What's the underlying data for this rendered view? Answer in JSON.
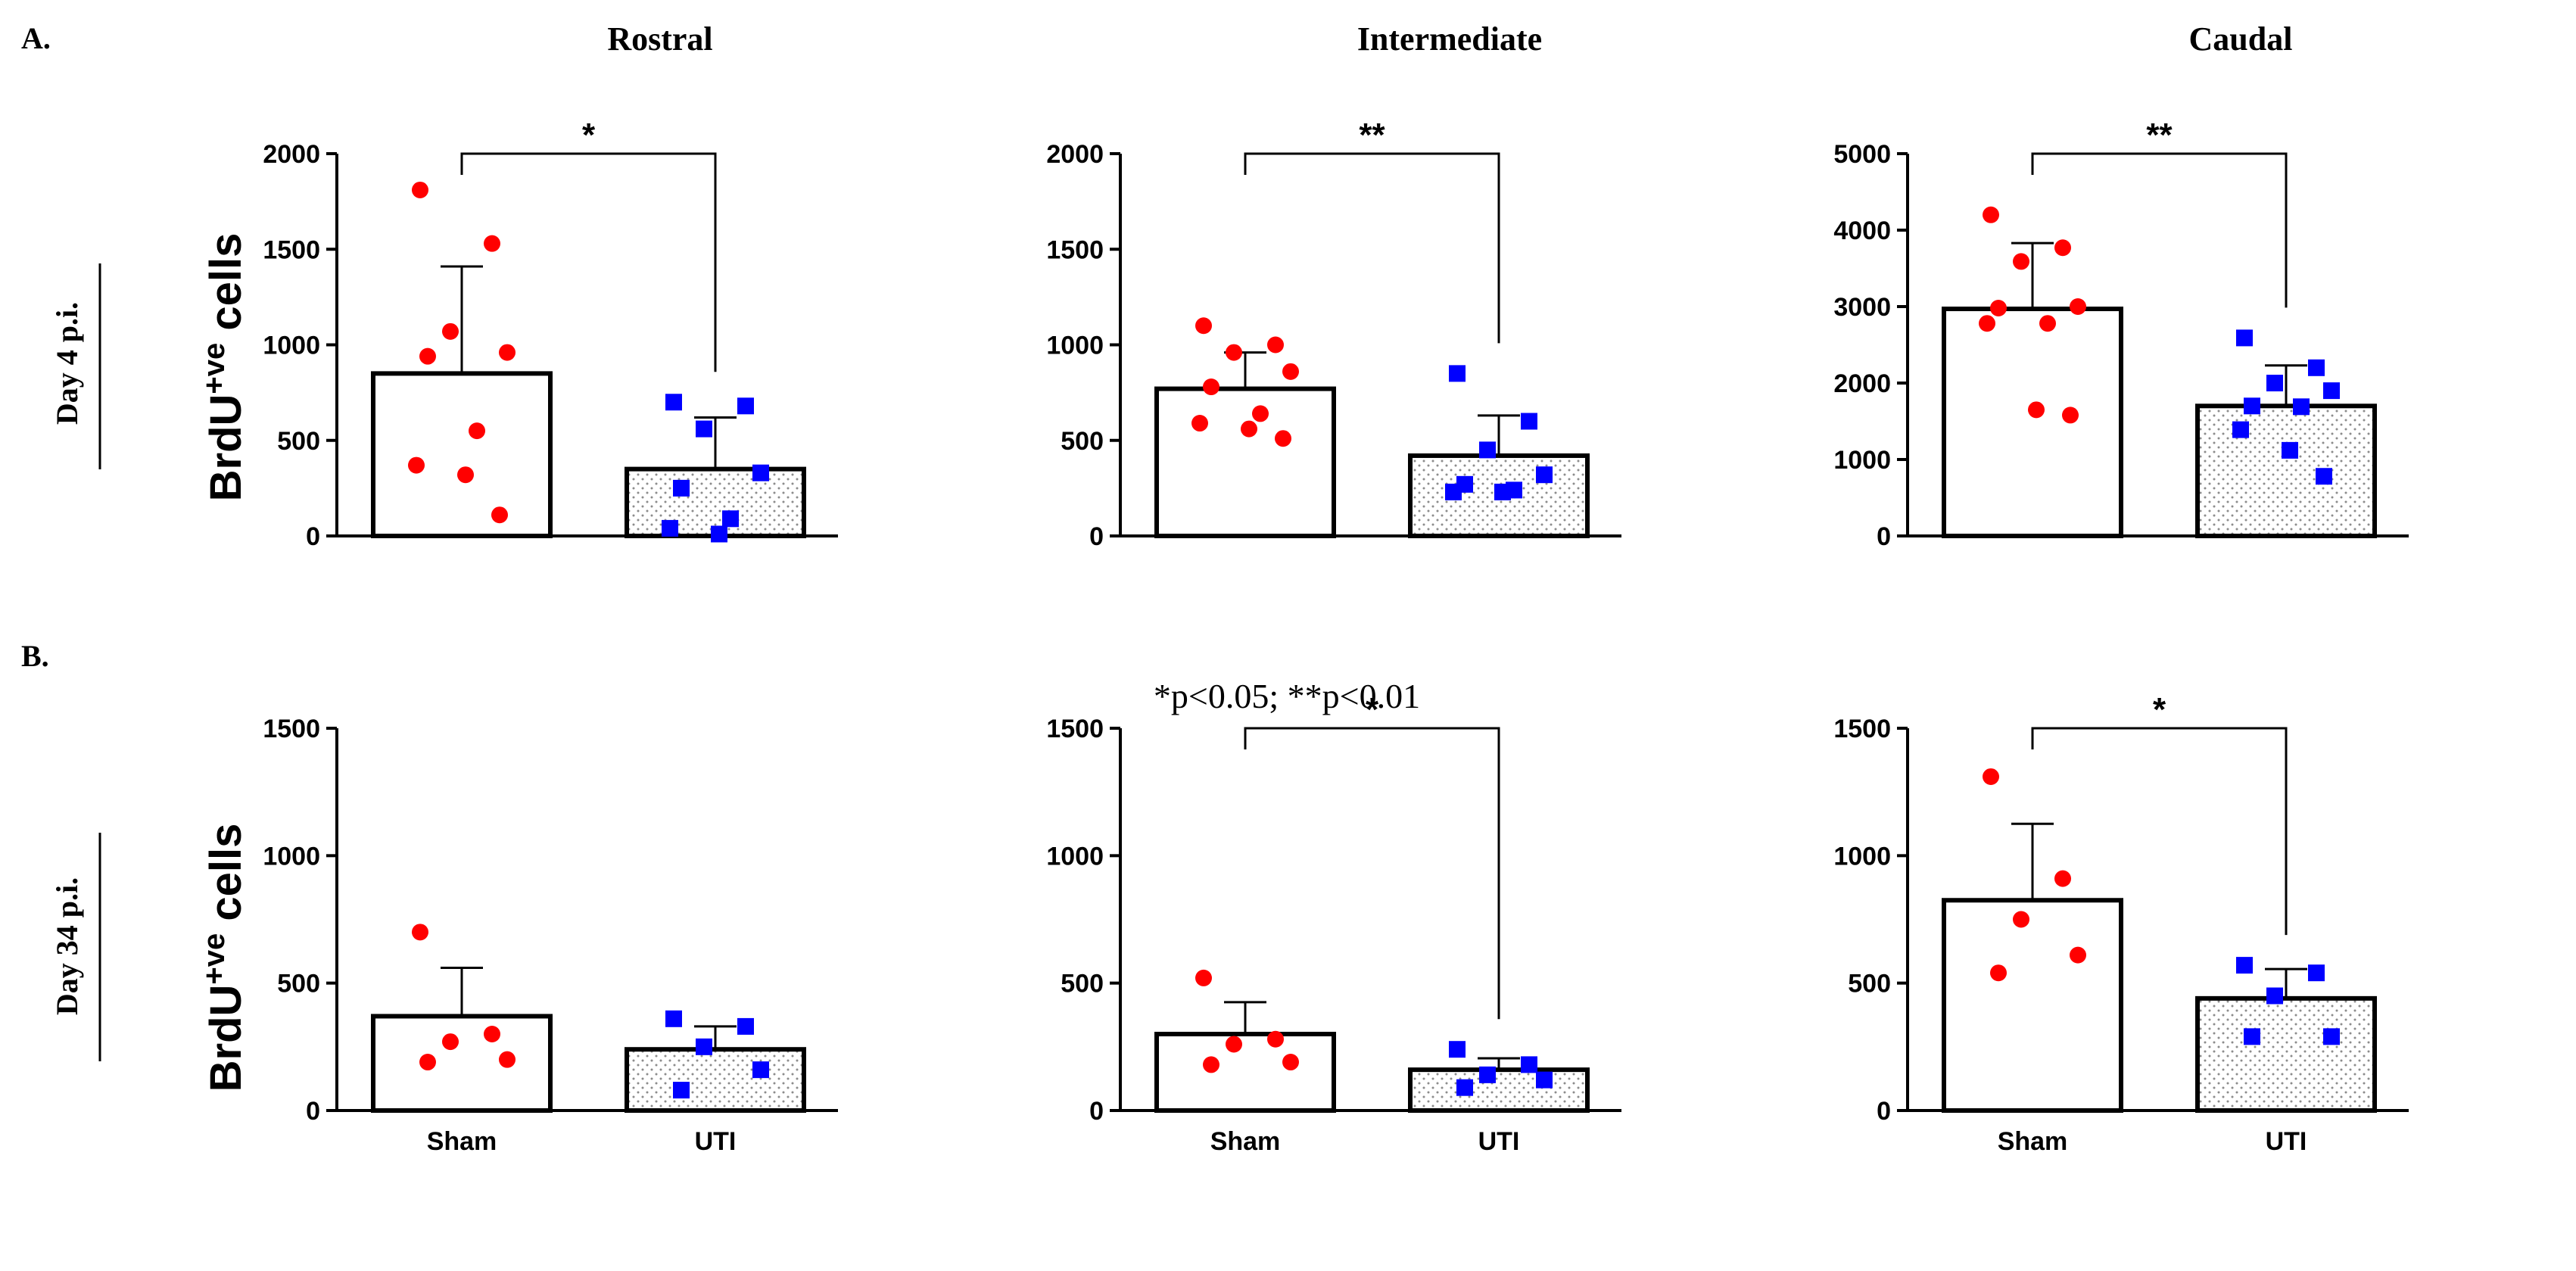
{
  "figure": {
    "panel_labels": [
      "A.",
      "B."
    ],
    "column_titles": [
      "Rostral",
      "Intermediate",
      "Caudal"
    ],
    "row_labels": [
      "Day 4 p.i.",
      "Day 34 p.i."
    ],
    "ylabel_main": "BrdU",
    "ylabel_sup": "+ve",
    "ylabel_end": " cells",
    "note": "*p<0.05; **p<0.01",
    "categories": [
      "Sham",
      "UTI"
    ],
    "colors": {
      "sham": "#ff0000",
      "uti": "#0000ff",
      "bar_edge": "#000000",
      "stipple": "#8c8c8c"
    }
  },
  "chart_data": [
    {
      "type": "bar",
      "panel": "A",
      "region": "Rostral",
      "timepoint": "Day 4 p.i.",
      "categories": [
        "Sham",
        "UTI"
      ],
      "ylabel": "BrdU+ve cells",
      "ylim": [
        0,
        2000
      ],
      "yticks": [
        0,
        500,
        1000,
        1500,
        2000
      ],
      "means": [
        850,
        350
      ],
      "sd": [
        560,
        270
      ],
      "points": [
        [
          1810,
          1530,
          1070,
          960,
          940,
          550,
          370,
          320,
          110
        ],
        [
          700,
          680,
          560,
          330,
          250,
          90,
          40,
          10
        ]
      ],
      "significance": "*"
    },
    {
      "type": "bar",
      "panel": "A",
      "region": "Intermediate",
      "timepoint": "Day 4 p.i.",
      "categories": [
        "Sham",
        "UTI"
      ],
      "ylabel": "BrdU+ve cells",
      "ylim": [
        0,
        2000
      ],
      "yticks": [
        0,
        500,
        1000,
        1500,
        2000
      ],
      "means": [
        770,
        420
      ],
      "sd": [
        190,
        210
      ],
      "points": [
        [
          1100,
          1000,
          960,
          860,
          780,
          640,
          590,
          560,
          510
        ],
        [
          850,
          600,
          450,
          320,
          270,
          240,
          230,
          230
        ]
      ],
      "significance": "**"
    },
    {
      "type": "bar",
      "panel": "A",
      "region": "Caudal",
      "timepoint": "Day 4 p.i.",
      "categories": [
        "Sham",
        "UTI"
      ],
      "ylabel": "BrdU+ve cells",
      "ylim": [
        0,
        5000
      ],
      "yticks": [
        0,
        1000,
        2000,
        3000,
        4000,
        5000
      ],
      "means": [
        2970,
        1700
      ],
      "sd": [
        860,
        530
      ],
      "points": [
        [
          4200,
          3770,
          3590,
          3000,
          2980,
          2780,
          2780,
          1650,
          1580
        ],
        [
          2590,
          2200,
          2000,
          1900,
          1700,
          1690,
          1390,
          1120,
          780
        ]
      ],
      "significance": "**"
    },
    {
      "type": "bar",
      "panel": "B",
      "region": "Rostral",
      "timepoint": "Day 34 p.i.",
      "categories": [
        "Sham",
        "UTI"
      ],
      "ylabel": "BrdU+ve cells",
      "ylim": [
        0,
        1500
      ],
      "yticks": [
        0,
        500,
        1000,
        1500
      ],
      "means": [
        370,
        240
      ],
      "sd": [
        190,
        90
      ],
      "points": [
        [
          700,
          300,
          270,
          200,
          190
        ],
        [
          360,
          330,
          250,
          160,
          80
        ]
      ],
      "significance": ""
    },
    {
      "type": "bar",
      "panel": "B",
      "region": "Intermediate",
      "timepoint": "Day 34 p.i.",
      "categories": [
        "Sham",
        "UTI"
      ],
      "ylabel": "BrdU+ve cells",
      "ylim": [
        0,
        1500
      ],
      "yticks": [
        0,
        500,
        1000,
        1500
      ],
      "means": [
        300,
        160
      ],
      "sd": [
        125,
        45
      ],
      "points": [
        [
          520,
          280,
          260,
          190,
          180
        ],
        [
          240,
          180,
          140,
          120,
          90
        ]
      ],
      "significance": "*"
    },
    {
      "type": "bar",
      "panel": "B",
      "region": "Caudal",
      "timepoint": "Day 34 p.i.",
      "categories": [
        "Sham",
        "UTI"
      ],
      "ylabel": "BrdU+ve cells",
      "ylim": [
        0,
        1500
      ],
      "yticks": [
        0,
        500,
        1000,
        1500
      ],
      "means": [
        825,
        440
      ],
      "sd": [
        300,
        115
      ],
      "points": [
        [
          1310,
          910,
          750,
          610,
          540
        ],
        [
          570,
          540,
          450,
          290,
          290
        ]
      ],
      "significance": "*"
    }
  ]
}
